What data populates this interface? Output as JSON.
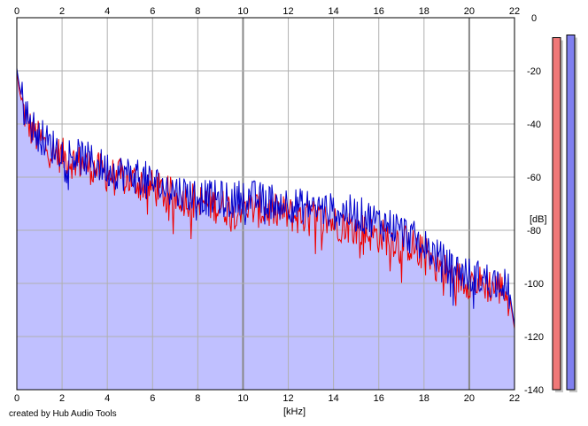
{
  "credit": "created by Hub Audio Tools",
  "colors": {
    "plot_background": "#ffffff",
    "grid": "#b0b0b0",
    "grid_major": "#888888",
    "fill": "#c0c0ff",
    "channel_left": "#ee0000",
    "channel_right": "#0000cc",
    "meter_left": "#f07878",
    "meter_right": "#8080f0",
    "meter_shadow": "#c8c8c8"
  },
  "chart_data": {
    "type": "area",
    "xlabel": "[kHz]",
    "ylabel": "[dB]",
    "xlim": [
      0,
      22
    ],
    "ylim": [
      -140,
      0
    ],
    "x_ticks": [
      0,
      2,
      4,
      6,
      8,
      10,
      12,
      14,
      16,
      18,
      20,
      22
    ],
    "x_tick_labels": [
      "0",
      "2",
      "4",
      "6",
      "8",
      "10",
      "12",
      "14",
      "16",
      "18",
      "20",
      "22"
    ],
    "y_ticks": [
      0,
      -20,
      -40,
      -60,
      -80,
      -100,
      -120,
      -140
    ],
    "y_tick_labels": [
      "0",
      "-20",
      "-40",
      "-60",
      "-80",
      "-100",
      "-120",
      "-140"
    ],
    "major_gridlines_x": [
      10,
      20
    ],
    "grid": true,
    "series": [
      {
        "color_key": "channel_left",
        "x": [
          0,
          0.1,
          0.3,
          0.5,
          0.7,
          1,
          1.5,
          2,
          2.5,
          3,
          3.5,
          4,
          4.5,
          5,
          5.5,
          6,
          6.5,
          7,
          7.5,
          8,
          8.5,
          9,
          9.5,
          10,
          10.5,
          11,
          11.5,
          12,
          12.5,
          13,
          13.5,
          14,
          14.5,
          15,
          15.5,
          16,
          16.5,
          17,
          17.5,
          18,
          18.5,
          19,
          19.5,
          20,
          20.5,
          21,
          21.5,
          21.8,
          22
        ],
        "y": [
          -20,
          -27,
          -35,
          -40,
          -43,
          -46,
          -50,
          -52,
          -54,
          -55,
          -57,
          -59,
          -60,
          -61,
          -62,
          -64,
          -66,
          -67,
          -68,
          -69,
          -70,
          -71,
          -72,
          -71,
          -72,
          -73,
          -73,
          -74,
          -75,
          -75,
          -76,
          -77,
          -78,
          -79,
          -81,
          -82,
          -83,
          -84,
          -86,
          -89,
          -92,
          -96,
          -98,
          -99,
          -100,
          -101,
          -102,
          -106,
          -117
        ]
      },
      {
        "color_key": "channel_right",
        "x": [
          0,
          0.1,
          0.3,
          0.5,
          0.7,
          1,
          1.5,
          2,
          2.5,
          3,
          3.5,
          4,
          4.5,
          5,
          5.5,
          6,
          6.5,
          7,
          7.5,
          8,
          8.5,
          9,
          9.5,
          10,
          10.5,
          11,
          11.5,
          12,
          12.5,
          13,
          13.5,
          14,
          14.5,
          15,
          15.5,
          16,
          16.5,
          17,
          17.5,
          18,
          18.5,
          19,
          19.5,
          20,
          20.5,
          21,
          21.5,
          21.8,
          22
        ],
        "y": [
          -19,
          -25,
          -33,
          -38,
          -41,
          -44,
          -48,
          -50,
          -52,
          -53,
          -55,
          -57,
          -58,
          -59,
          -60,
          -62,
          -64,
          -65,
          -66,
          -67,
          -68,
          -68,
          -69,
          -67,
          -68,
          -69,
          -69,
          -70,
          -71,
          -71,
          -72,
          -73,
          -73,
          -74,
          -75,
          -77,
          -78,
          -80,
          -83,
          -86,
          -89,
          -93,
          -95,
          -97,
          -98,
          -99,
          -100,
          -104,
          -116
        ]
      }
    ],
    "meters": [
      {
        "color_key": "meter_left",
        "level_db": -7.5
      },
      {
        "color_key": "meter_right",
        "level_db": -6.5
      }
    ]
  }
}
